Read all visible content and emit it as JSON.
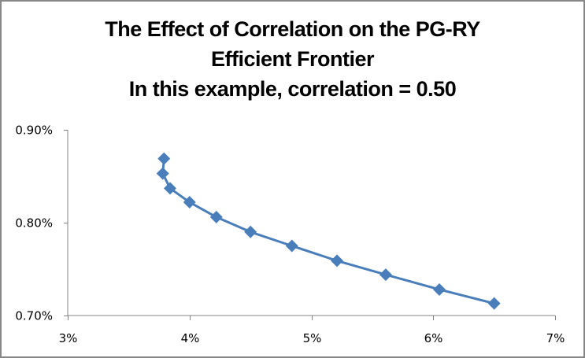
{
  "chart_data": {
    "type": "line",
    "title": [
      "The Effect of Correlation on the PG-RY",
      "Efficient Frontier",
      "In this example, correlation = 0.50"
    ],
    "xlabel": "",
    "ylabel": "",
    "xlim": [
      3,
      7
    ],
    "ylim": [
      0.7,
      0.9
    ],
    "x_ticks": [
      3,
      4,
      5,
      6,
      7
    ],
    "x_tick_labels": [
      "3%",
      "4%",
      "5%",
      "6%",
      "7%"
    ],
    "y_ticks": [
      0.7,
      0.8,
      0.9
    ],
    "y_tick_labels": [
      "0.70%",
      "0.80%",
      "0.90%"
    ],
    "grid": false,
    "legend": "none",
    "series": [
      {
        "name": "PG-RY frontier",
        "color": "#4a7ebb",
        "marker": "diamond",
        "x": [
          3.79,
          3.78,
          3.84,
          4.0,
          4.22,
          4.5,
          4.84,
          5.21,
          5.61,
          6.05,
          6.5
        ],
        "y": [
          0.869,
          0.853,
          0.837,
          0.822,
          0.806,
          0.79,
          0.775,
          0.759,
          0.744,
          0.728,
          0.713
        ]
      }
    ]
  }
}
